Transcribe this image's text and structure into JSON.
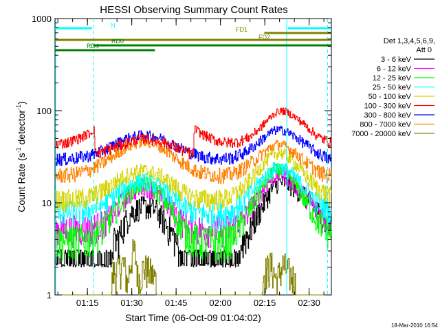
{
  "chart_data": {
    "type": "line",
    "title": "HESSI Observing Summary Count Rates",
    "xlabel": "Start Time (06-Oct-09 01:04:02)",
    "ylabel_main": "Count Rate (s",
    "ylabel_sup1": "-1",
    "ylabel_mid": " detector",
    "ylabel_sup2": "-1",
    "ylabel_end": ")",
    "yscale": "log",
    "ylim": [
      1,
      1000
    ],
    "xlim_minutes": [
      0,
      93.5
    ],
    "x_tick_labels": [
      "01:15",
      "01:30",
      "01:45",
      "02:00",
      "02:15",
      "02:30"
    ],
    "x_tick_minutes": [
      10.97,
      25.97,
      40.97,
      55.97,
      70.97,
      85.97
    ],
    "y_tick_labels": [
      "1",
      "10",
      "100",
      "1000"
    ],
    "y_tick_values": [
      1,
      10,
      100,
      1000
    ],
    "legend": {
      "title_line1": "Det 1,3,4,5,6,9,",
      "title_line2": "Att 0",
      "entries": [
        {
          "label": "3 - 6 keV",
          "color": "#000000"
        },
        {
          "label": "6 - 12 keV",
          "color": "#ff00ff"
        },
        {
          "label": "12 - 25 keV",
          "color": "#00ff00"
        },
        {
          "label": "25 - 50 keV",
          "color": "#00ffff"
        },
        {
          "label": "50 - 100 keV",
          "color": "#d4d400"
        },
        {
          "label": "100 - 300 keV",
          "color": "#ff0000"
        },
        {
          "label": "300 - 800 keV",
          "color": "#0000ff"
        },
        {
          "label": "800 - 7000 keV",
          "color": "#ff8000"
        },
        {
          "label": "7000 - 20000 keV",
          "color": "#808000"
        }
      ]
    },
    "series": [
      {
        "name": "3 - 6 keV",
        "color": "#000000",
        "x": [
          0,
          10,
          14,
          18,
          22,
          24,
          26,
          28,
          30,
          34,
          38,
          42,
          46,
          50,
          54,
          58,
          62,
          66,
          70,
          72,
          74,
          76,
          78,
          80,
          84,
          88,
          90,
          93.5
        ],
        "y": [
          2.5,
          2.6,
          2.6,
          3.0,
          4.5,
          6.5,
          8.0,
          8.8,
          9.2,
          8.5,
          5.5,
          3.3,
          2.6,
          2.6,
          2.6,
          2.6,
          3.2,
          5.0,
          9.0,
          12,
          15,
          17,
          16.5,
          15,
          12,
          9,
          7,
          5.5
        ]
      },
      {
        "name": "6 - 12 keV",
        "color": "#ff00ff",
        "x": [
          0,
          8,
          12,
          16,
          20,
          24,
          28,
          30,
          32,
          36,
          40,
          44,
          48,
          52,
          56,
          60,
          64,
          68,
          72,
          74,
          76,
          78,
          80,
          84,
          88,
          93.5
        ],
        "y": [
          5.2,
          5.3,
          5.4,
          6.0,
          8.0,
          11.5,
          14.5,
          15.0,
          14.5,
          11.5,
          8.0,
          5.8,
          5.3,
          5.2,
          5.2,
          5.5,
          7.0,
          10.5,
          16.5,
          19.5,
          20.5,
          19.5,
          17,
          12.5,
          8.5,
          5.8
        ]
      },
      {
        "name": "12 - 25 keV",
        "color": "#00ff00",
        "x": [
          0,
          8,
          12,
          16,
          20,
          24,
          28,
          30,
          32,
          36,
          40,
          44,
          48,
          52,
          56,
          60,
          64,
          68,
          72,
          74,
          76,
          78,
          80,
          84,
          88,
          93.5
        ],
        "y": [
          4.0,
          4.0,
          4.2,
          5.2,
          7.8,
          12.0,
          15.5,
          16.0,
          15.5,
          12.0,
          7.5,
          4.8,
          4.0,
          3.9,
          3.9,
          4.3,
          6.5,
          11,
          18.5,
          22,
          23,
          21.5,
          18,
          11.5,
          7,
          4.5
        ]
      },
      {
        "name": "25 - 50 keV",
        "color": "#00ffff",
        "x": [
          0,
          8,
          12,
          16,
          20,
          24,
          28,
          30,
          32,
          36,
          40,
          44,
          48,
          52,
          56,
          60,
          64,
          68,
          72,
          74,
          76,
          78,
          80,
          84,
          88,
          93.5
        ],
        "y": [
          8.0,
          8.0,
          8.4,
          9.5,
          12.0,
          15.0,
          17.0,
          17.5,
          17.0,
          14.5,
          11.0,
          8.8,
          7.8,
          7.6,
          7.6,
          8.2,
          10.5,
          15,
          21,
          23.5,
          24.5,
          23,
          20.5,
          15,
          10.5,
          8.2
        ]
      },
      {
        "name": "50 - 100 keV",
        "color": "#d4d400",
        "x": [
          0,
          8,
          12,
          16,
          20,
          24,
          28,
          30,
          32,
          36,
          40,
          44,
          48,
          52,
          56,
          60,
          64,
          68,
          72,
          74,
          76,
          78,
          80,
          84,
          88,
          93.5
        ],
        "y": [
          11.0,
          11.0,
          11.8,
          13.5,
          16.5,
          20.0,
          22.0,
          22.5,
          22.0,
          19.5,
          15.5,
          12.5,
          11.2,
          11.0,
          11.0,
          11.8,
          15,
          21,
          30,
          34,
          35,
          33,
          29,
          21,
          15,
          11.5
        ]
      },
      {
        "name": "100 - 300 keV",
        "color": "#ff0000",
        "x": [
          0,
          4,
          8,
          12,
          13.3,
          13.4,
          16,
          20,
          24,
          28,
          30,
          32,
          36,
          40,
          44,
          46.9,
          47,
          50,
          54,
          58,
          62,
          66,
          70,
          74,
          76,
          78,
          80,
          84,
          88,
          90,
          93.5
        ],
        "y": [
          44,
          45,
          50,
          58,
          64,
          34,
          36,
          40,
          45,
          49,
          50,
          49,
          46,
          41,
          36,
          33,
          64,
          55,
          48,
          45,
          46,
          52,
          68,
          92,
          100,
          98,
          90,
          72,
          55,
          50,
          45
        ]
      },
      {
        "name": "300 - 800 keV",
        "color": "#0000ff",
        "x": [
          0,
          4,
          8,
          12,
          13.3,
          16,
          20,
          24,
          28,
          30,
          32,
          36,
          40,
          44,
          48,
          52,
          56,
          60,
          64,
          68,
          72,
          74,
          76,
          78,
          80,
          84,
          88,
          90,
          93.5
        ],
        "y": [
          30,
          30,
          31,
          33,
          34,
          37,
          43,
          50,
          54,
          55,
          54,
          50,
          43,
          37,
          33,
          31,
          30,
          31,
          35,
          43,
          55,
          61,
          62,
          60,
          55,
          45,
          36,
          33,
          29
        ]
      },
      {
        "name": "800 - 7000 keV",
        "color": "#ff8000",
        "x": [
          0,
          4,
          8,
          12,
          16,
          20,
          24,
          28,
          30,
          32,
          36,
          40,
          44,
          48,
          52,
          56,
          60,
          64,
          68,
          72,
          74,
          76,
          78,
          80,
          84,
          88,
          90,
          93.5
        ],
        "y": [
          20,
          20,
          21,
          23,
          27,
          33,
          40,
          45,
          46,
          45,
          40,
          32,
          26,
          22,
          20.5,
          20,
          20.5,
          24,
          30,
          38,
          42,
          43,
          41,
          37,
          29,
          23,
          21,
          19.5
        ]
      },
      {
        "name": "7000 - 20000 keV",
        "color": "#808000",
        "x": [
          0,
          19,
          19.5,
          23,
          24.5,
          26,
          26.8,
          27.5,
          28,
          30,
          34,
          34.5,
          70,
          70.5,
          73,
          75,
          77,
          80,
          81,
          81.5,
          93.5
        ],
        "y": [
          1,
          1,
          1.7,
          2.2,
          1.3,
          2.7,
          3.0,
          2.2,
          1.4,
          2.0,
          1.5,
          1,
          1,
          1.7,
          2.1,
          1.4,
          2.1,
          1.6,
          1.5,
          1,
          1
        ]
      }
    ],
    "flag_bars": [
      {
        "label": "N",
        "color": "#00ffff",
        "segments": [
          [
            0,
            12.5
          ],
          [
            78.8,
            93.5
          ]
        ]
      },
      {
        "label": "FD1",
        "color": "#808000",
        "segments": [
          [
            70.8,
            93.5
          ]
        ]
      },
      {
        "label": "FD2",
        "color": "#808000",
        "segments": [
          [
            0,
            93.5
          ]
        ]
      },
      {
        "label": "RD0",
        "color": "#008000",
        "segments": [
          [
            13,
            93.5
          ]
        ]
      },
      {
        "label": "RD4",
        "color": "#008000",
        "segments": [
          [
            0,
            33.8
          ]
        ]
      }
    ],
    "vertical_markers": {
      "solid_minutes": [
        0.2,
        78.4
      ],
      "dashed_minutes": [
        13.0,
        92.2
      ]
    }
  },
  "footer_timestamp": "18-Mar-2010 16:54"
}
